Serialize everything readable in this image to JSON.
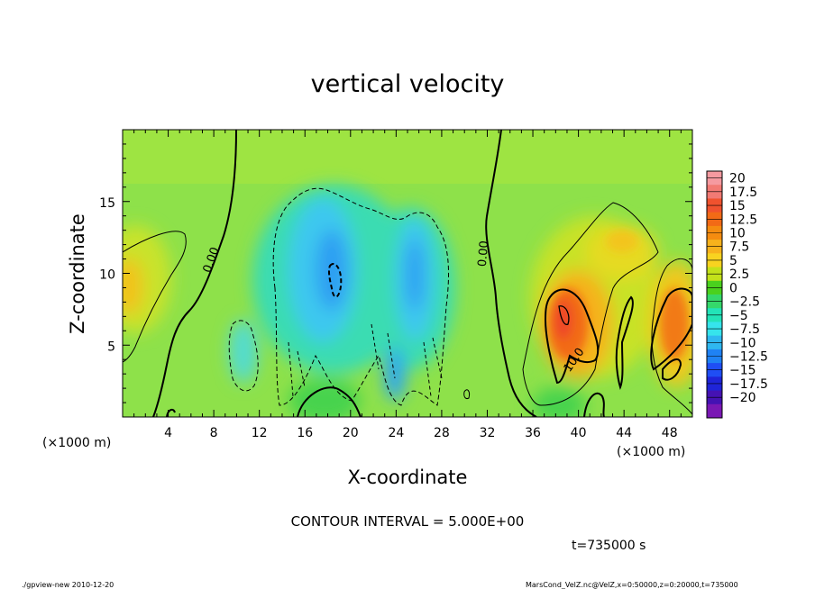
{
  "chart_data": {
    "type": "heatmap",
    "title": "vertical velocity",
    "xlabel": "X-coordinate",
    "ylabel": "Z-coordinate",
    "x_units": "(×1000 m)",
    "xlim": [
      0,
      50
    ],
    "ylim": [
      0,
      20
    ],
    "x_ticks": [
      4,
      8,
      12,
      16,
      20,
      24,
      28,
      32,
      36,
      40,
      44,
      48
    ],
    "y_ticks": [
      5,
      10,
      15
    ],
    "contour_interval_text": "CONTOUR INTERVAL = 5.000E+00",
    "time_text": "t=735000 s",
    "contour_labels": [
      "0.00",
      "0.00",
      "10.0"
    ],
    "colorbar": {
      "levels": [
        "20",
        "17.5",
        "15",
        "12.5",
        "10",
        "7.5",
        "5",
        "2.5",
        "0",
        "−2.5",
        "−5",
        "−7.5",
        "−10",
        "−12.5",
        "−15",
        "−17.5",
        "−20"
      ],
      "colors": [
        "#f59aa0",
        "#f27a74",
        "#f0522e",
        "#f26a16",
        "#f58c10",
        "#f7b21c",
        "#f8d320",
        "#c3e21a",
        "#4ad11e",
        "#35d86a",
        "#23e3b8",
        "#36e4ec",
        "#2fb8f0",
        "#1f82f4",
        "#1f4ef4",
        "#1f24d8",
        "#4512b3",
        "#7a18b4"
      ]
    },
    "features": [
      {
        "kind": "updraft",
        "x": 39,
        "z": 6.5,
        "peak": 12.5
      },
      {
        "kind": "updraft",
        "x": 47.5,
        "z": 6.5,
        "peak": 12.5
      },
      {
        "kind": "updraft",
        "x": 0.5,
        "z": 9.5,
        "peak": 7.5
      },
      {
        "kind": "updraft",
        "x": 43,
        "z": 12,
        "peak": 7.5
      },
      {
        "kind": "downdraft",
        "x": 18.5,
        "z": 10,
        "peak": -10
      },
      {
        "kind": "downdraft",
        "x": 25.5,
        "z": 9.5,
        "peak": -7.5
      },
      {
        "kind": "downdraft",
        "x": 24,
        "z": 3,
        "peak": -7.5
      },
      {
        "kind": "downdraft",
        "x": 9.5,
        "z": 5,
        "peak": -5
      }
    ]
  },
  "footer": {
    "left": "./gpview-new  2010-12-20",
    "right": "MarsCond_VelZ.nc@VelZ,x=0:50000,z=0:20000,t=735000"
  }
}
